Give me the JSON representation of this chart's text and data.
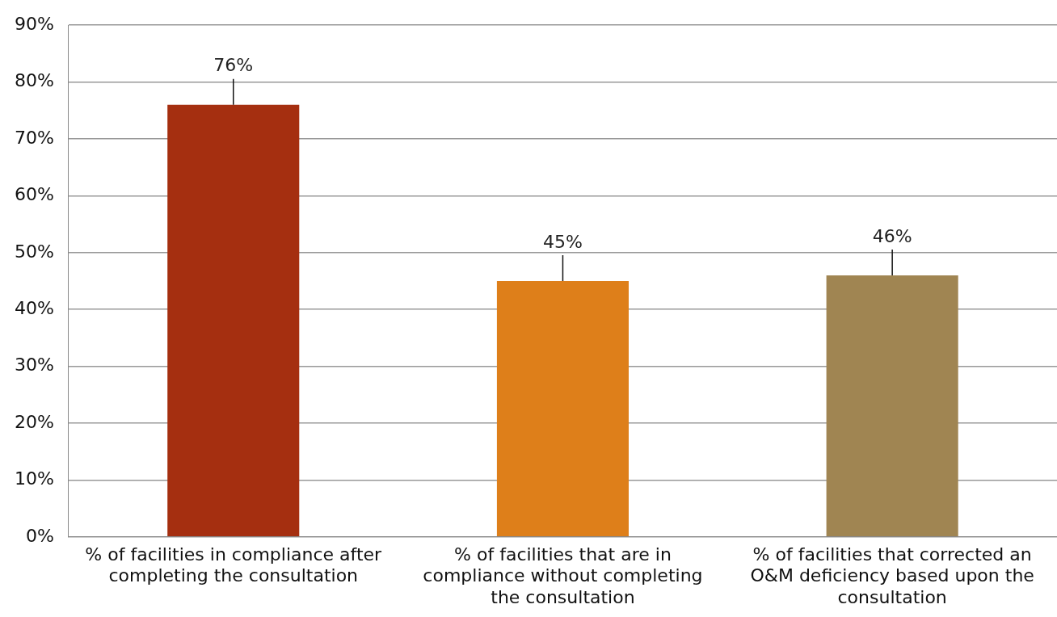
{
  "chart_data": {
    "type": "bar",
    "categories": [
      "% of facilities in compliance after completing the consultation",
      "% of facilities that are in compliance without completing the consultation",
      "% of facilities that corrected an O&M deficiency based upon the consultation"
    ],
    "values": [
      76,
      45,
      46
    ],
    "colors": [
      "#a52f10",
      "#de7f1a",
      "#a08552"
    ],
    "ylim": [
      0,
      90
    ],
    "yticks": [
      {
        "value": 0,
        "label": "0%"
      },
      {
        "value": 10,
        "label": "10%"
      },
      {
        "value": 20,
        "label": "20%"
      },
      {
        "value": 30,
        "label": "30%"
      },
      {
        "value": 40,
        "label": "40%"
      },
      {
        "value": 50,
        "label": "50%"
      },
      {
        "value": 60,
        "label": "60%"
      },
      {
        "value": 70,
        "label": "70%"
      },
      {
        "value": 80,
        "label": "80%"
      },
      {
        "value": 90,
        "label": "90%"
      }
    ],
    "value_labels": [
      "76%",
      "45%",
      "46%"
    ],
    "grid": "y"
  }
}
